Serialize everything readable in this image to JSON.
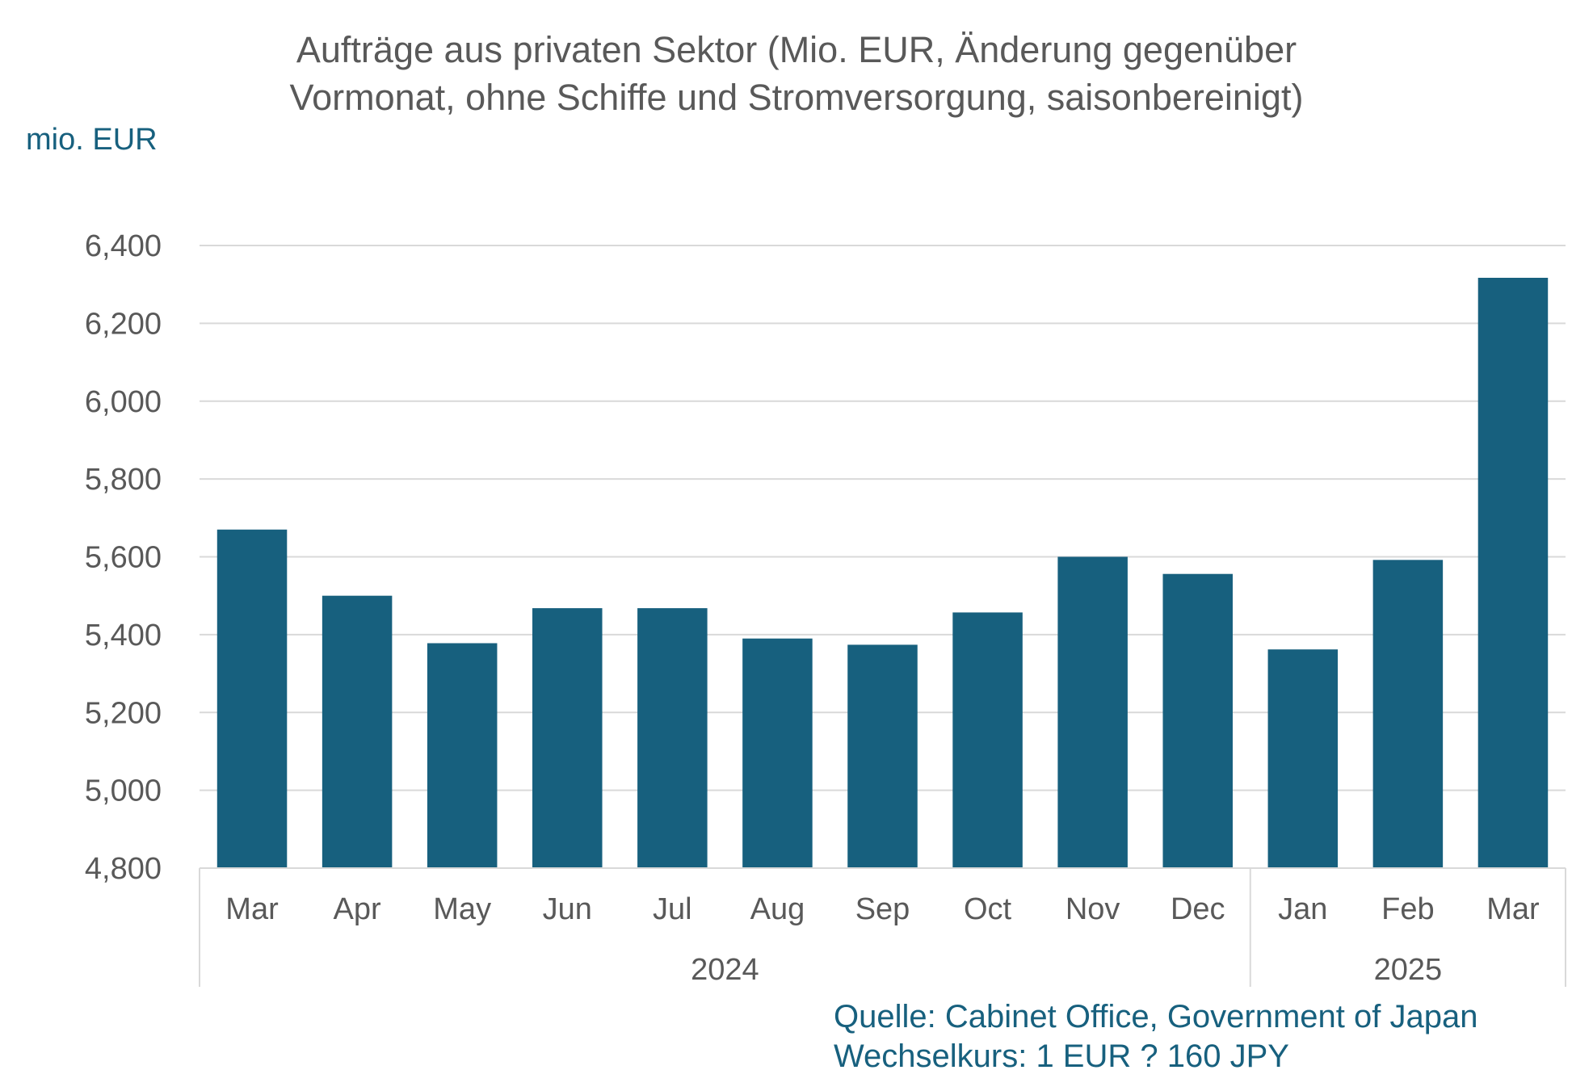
{
  "chart_data": {
    "type": "bar",
    "title": [
      "Aufträge aus privaten Sektor (Mio. EUR, Änderung gegenüber",
      "Vormonat, ohne Schiffe und Stromversorgung, saisonbereinigt)"
    ],
    "ylabel": "mio. EUR",
    "ylim": [
      4800,
      6400
    ],
    "yticks": [
      "4,800",
      "5,000",
      "5,200",
      "5,400",
      "5,600",
      "5,800",
      "6,000",
      "6,200",
      "6,400"
    ],
    "ytick_values": [
      4800,
      5000,
      5200,
      5400,
      5600,
      5800,
      6000,
      6200,
      6400
    ],
    "categories": [
      "Mar",
      "Apr",
      "May",
      "Jun",
      "Jul",
      "Aug",
      "Sep",
      "Oct",
      "Nov",
      "Dec",
      "Jan",
      "Feb",
      "Mar"
    ],
    "year_groups": [
      {
        "label": "2024",
        "count": 10
      },
      {
        "label": "2025",
        "count": 3
      }
    ],
    "values": [
      5670,
      5500,
      5378,
      5468,
      5468,
      5390,
      5374,
      5457,
      5600,
      5556,
      5362,
      5592,
      6317
    ],
    "bar_color": "#17607e",
    "grid": true,
    "legend": "none"
  },
  "footnote": {
    "source": "Quelle: Cabinet Office, Government of Japan",
    "exchange": "Wechselkurs: 1 EUR ? 160 JPY"
  }
}
